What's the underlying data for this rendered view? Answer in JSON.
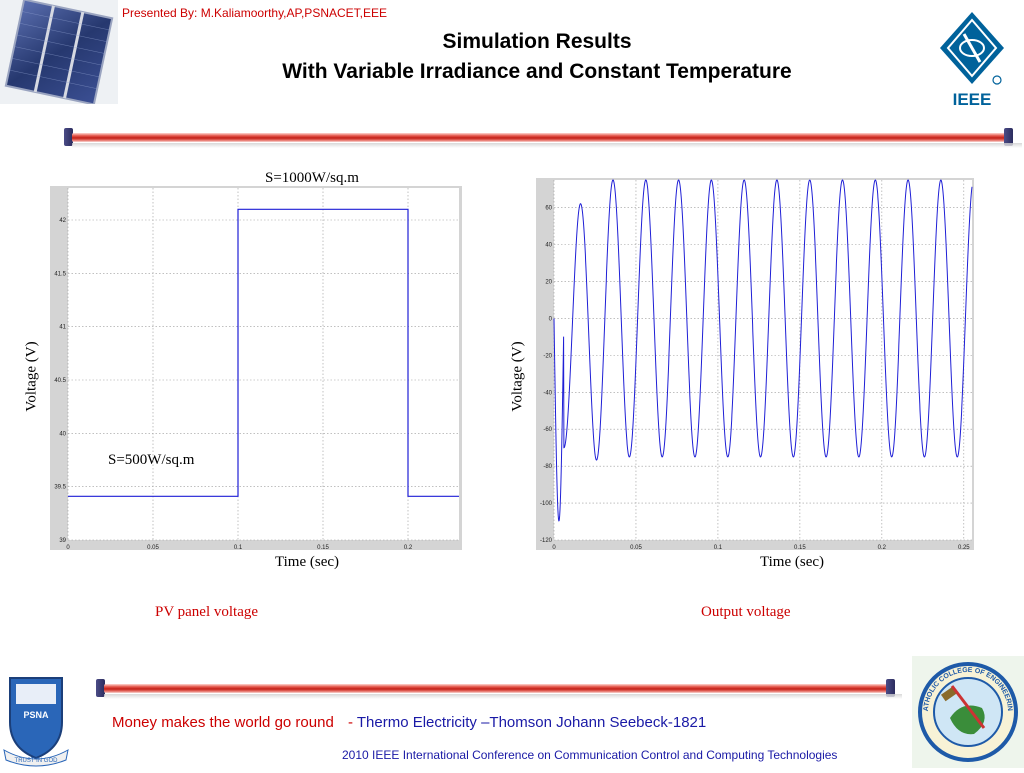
{
  "header": {
    "presenter": "Presented By: M.Kaliamoorthy,AP,PSNACET,EEE",
    "title_line1": "Simulation Results",
    "title_line2": "With Variable Irradiance and   Constant Temperature",
    "ieee_logo_text": "IEEE"
  },
  "logos": {
    "psna_text": "PSNA",
    "psna_motto": "TRUST IN GOD",
    "catholic_text": "CATHOLIC COLLEGE OF ENGINEERING"
  },
  "charts": {
    "left": {
      "caption": "PV panel voltage",
      "xlabel": "Time (sec)",
      "ylabel": "Voltage (V)",
      "annotation_high": "S=1000W/sq.m",
      "annotation_low": "S=500W/sq.m"
    },
    "right": {
      "caption": "Output voltage",
      "xlabel": "Time (sec)",
      "ylabel": "Voltage (V)"
    }
  },
  "chart_data": [
    {
      "type": "line",
      "title": "",
      "caption": "PV panel voltage",
      "xlabel": "Time (sec)",
      "ylabel": "Voltage (V)",
      "xlim": [
        0,
        0.23
      ],
      "ylim": [
        39,
        42.3
      ],
      "xticks": [
        "0",
        "0.05",
        "0.1",
        "0.15",
        "0.2"
      ],
      "yticks": [
        "39",
        "39.5",
        "40",
        "40.5",
        "41",
        "41.5",
        "42"
      ],
      "grid": true,
      "series": [
        {
          "x": [
            0,
            0.1,
            0.1,
            0.2,
            0.2,
            0.23
          ],
          "y": [
            39.41,
            39.41,
            42.1,
            42.1,
            39.41,
            39.41
          ]
        }
      ],
      "annotations": [
        "S=1000W/sq.m",
        "S=500W/sq.m"
      ]
    },
    {
      "type": "line",
      "title": "",
      "caption": "Output voltage",
      "xlabel": "Time (sec)",
      "ylabel": "Voltage (V)",
      "xlim": [
        0,
        0.255
      ],
      "ylim": [
        -120,
        75
      ],
      "xticks": [
        "0",
        "0.05",
        "0.1",
        "0.15",
        "0.2",
        "0.25"
      ],
      "yticks": [
        "-120",
        "-100",
        "-80",
        "-60",
        "-40",
        "-20",
        "0",
        "20",
        "40",
        "60"
      ],
      "grid": true,
      "series": [
        {
          "description_values": {
            "frequency_hz": 50,
            "amplitude_v": 75,
            "transient_min_v": -112,
            "first_peak_v": 60
          }
        }
      ]
    }
  ],
  "footer": {
    "quote": "Money makes the world go round",
    "separator": "-",
    "attribution": "Thermo Electricity –Thomson Johann Seebeck-1821",
    "conference": "2010 IEEE International Conference on Communication Control and Computing Technologies"
  },
  "colors": {
    "accent_red": "#cc0000",
    "accent_blue": "#1a1aa6",
    "plot_line": "#1f1fd6",
    "ieee_blue": "#00629b"
  }
}
